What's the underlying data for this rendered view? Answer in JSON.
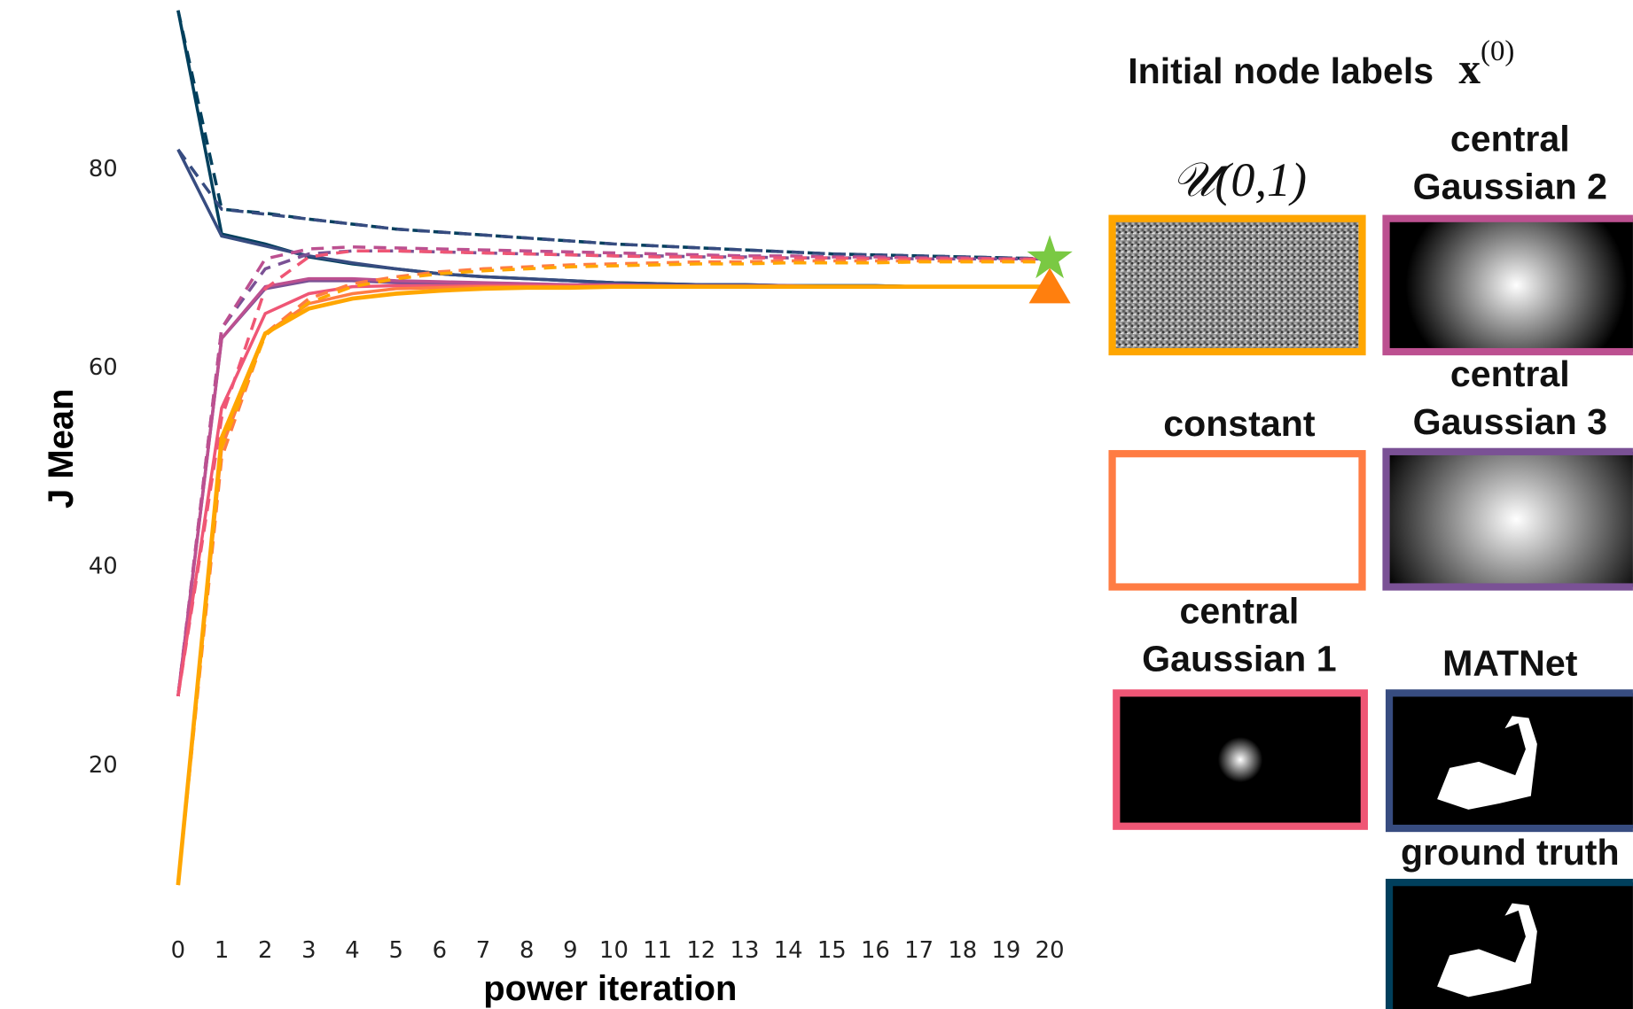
{
  "chart_data": {
    "type": "line",
    "x_label": "power iteration",
    "y_label": "J Mean",
    "legend_title": "Initial node labels",
    "legend_symbol": "x",
    "legend_superscript": "(0)",
    "x": [
      0,
      1,
      2,
      3,
      4,
      5,
      6,
      7,
      8,
      9,
      10,
      11,
      12,
      13,
      14,
      15,
      16,
      17,
      18,
      19,
      20
    ],
    "xlim": [
      0,
      20
    ],
    "xticks": [
      0,
      1,
      2,
      3,
      4,
      5,
      6,
      7,
      8,
      9,
      10,
      11,
      12,
      13,
      14,
      15,
      16,
      17,
      18,
      19,
      20
    ],
    "ylim": [
      7,
      96
    ],
    "yticks": [
      20,
      40,
      60,
      80
    ],
    "grid": false,
    "series": [
      {
        "name": "𝒰(0,1)",
        "color": "#FFA600",
        "values": [
          8,
          53,
          63.5,
          66,
          67,
          67.5,
          67.8,
          68,
          68.1,
          68.1,
          68.2,
          68.2,
          68.2,
          68.2,
          68.2,
          68.2,
          68.2,
          68.2,
          68.2,
          68.2,
          68.2
        ],
        "values_dashed": [
          8,
          52,
          63.3,
          66.6,
          68.2,
          69,
          69.5,
          69.8,
          70,
          70.2,
          70.3,
          70.4,
          70.5,
          70.5,
          70.6,
          70.6,
          70.6,
          70.7,
          70.7,
          70.7,
          70.7
        ]
      },
      {
        "name": "constant",
        "color": "#FF7C43",
        "values": [
          8,
          52,
          63.5,
          66.5,
          67.5,
          68,
          68.1,
          68.2,
          68.2,
          68.2,
          68.2,
          68.2,
          68.2,
          68.2,
          68.2,
          68.2,
          68.2,
          68.2,
          68.2,
          68.2,
          68.2
        ],
        "values_dashed": [
          8,
          51,
          63.5,
          67,
          68.5,
          69.2,
          69.7,
          70,
          70.2,
          70.4,
          70.5,
          70.6,
          70.7,
          70.7,
          70.8,
          70.8,
          70.8,
          70.8,
          70.8,
          70.8,
          70.8
        ]
      },
      {
        "name": "central Gaussian 1",
        "color": "#EF5675",
        "values": [
          27,
          56,
          65.5,
          67.5,
          68.2,
          68.3,
          68.3,
          68.3,
          68.3,
          68.3,
          68.3,
          68.3,
          68.2,
          68.2,
          68.2,
          68.2,
          68.2,
          68.2,
          68.2,
          68.2,
          68.2
        ],
        "values_dashed": [
          27,
          55,
          68,
          71.2,
          71.8,
          71.8,
          71.7,
          71.6,
          71.5,
          71.4,
          71.3,
          71.2,
          71.2,
          71.1,
          71.1,
          71.1,
          71,
          71,
          71,
          71,
          71
        ]
      },
      {
        "name": "central Gaussian 2",
        "color": "#BC5090",
        "values": [
          27,
          63,
          68.2,
          69,
          69,
          68.8,
          68.7,
          68.6,
          68.5,
          68.4,
          68.4,
          68.3,
          68.3,
          68.3,
          68.3,
          68.2,
          68.2,
          68.2,
          68.2,
          68.2,
          68.2
        ],
        "values_dashed": [
          27,
          64,
          71,
          72,
          72.2,
          72.1,
          72,
          71.9,
          71.8,
          71.7,
          71.6,
          71.5,
          71.4,
          71.3,
          71.3,
          71.2,
          71.2,
          71.1,
          71.1,
          71,
          71
        ]
      },
      {
        "name": "central Gaussian 3",
        "color": "#7A5195",
        "values": [
          27,
          63,
          68,
          68.8,
          68.8,
          68.6,
          68.5,
          68.4,
          68.4,
          68.3,
          68.3,
          68.3,
          68.3,
          68.2,
          68.2,
          68.2,
          68.2,
          68.2,
          68.2,
          68.2,
          68.2
        ],
        "values_dashed": [
          27,
          64,
          70,
          71.5,
          71.8,
          71.8,
          71.7,
          71.6,
          71.5,
          71.4,
          71.3,
          71.3,
          71.2,
          71.2,
          71.1,
          71.1,
          71.1,
          71,
          71,
          71,
          71
        ]
      },
      {
        "name": "MATNet",
        "color": "#374C80",
        "values": [
          82,
          73.3,
          72.3,
          71.3,
          70.6,
          70,
          69.5,
          69.2,
          69,
          68.8,
          68.6,
          68.5,
          68.4,
          68.4,
          68.3,
          68.3,
          68.3,
          68.2,
          68.2,
          68.2,
          68.2
        ],
        "values_dashed": [
          82,
          76,
          75.5,
          75,
          74.5,
          74,
          73.7,
          73.4,
          73.1,
          72.8,
          72.5,
          72.3,
          72.1,
          71.9,
          71.7,
          71.5,
          71.4,
          71.3,
          71.2,
          71.1,
          71
        ]
      },
      {
        "name": "ground truth",
        "color": "#003F5C",
        "values": [
          96,
          73.5,
          72.5,
          71.2,
          70.5,
          70,
          69.5,
          69.2,
          69,
          68.8,
          68.6,
          68.5,
          68.4,
          68.4,
          68.3,
          68.3,
          68.3,
          68.2,
          68.2,
          68.2,
          68.2
        ],
        "values_dashed": [
          96,
          76,
          75.6,
          75,
          74.5,
          74,
          73.7,
          73.4,
          73.1,
          72.8,
          72.5,
          72.3,
          72.1,
          71.9,
          71.7,
          71.5,
          71.4,
          71.3,
          71.2,
          71.1,
          71
        ]
      }
    ],
    "markers": [
      {
        "shape": "star",
        "color": "#7AC943",
        "x": 20,
        "y": 71
      },
      {
        "shape": "triangle",
        "color": "#FF7F0E",
        "x": 20,
        "y": 68
      }
    ]
  }
}
